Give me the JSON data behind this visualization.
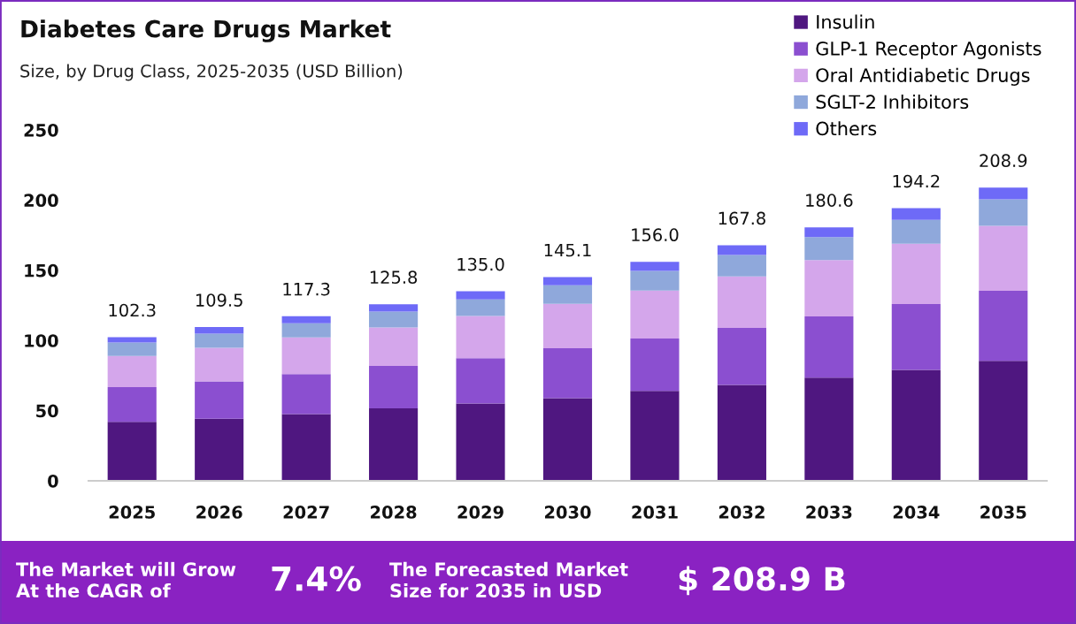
{
  "chart_data": {
    "type": "bar",
    "title": "Diabetes Care Drugs Market",
    "subtitle": "Size, by Drug Class, 2025-2035 (USD Billion)",
    "categories": [
      "2025",
      "2026",
      "2027",
      "2028",
      "2029",
      "2030",
      "2031",
      "2032",
      "2033",
      "2034",
      "2035"
    ],
    "stacked": true,
    "series": [
      {
        "name": "Insulin",
        "color": "#4f1780",
        "values": [
          42.0,
          44.2,
          47.6,
          51.6,
          55.1,
          58.9,
          64.0,
          68.4,
          73.5,
          79.1,
          85.5
        ]
      },
      {
        "name": "GLP-1 Receptor Agonists",
        "color": "#8b4fd0",
        "values": [
          24.8,
          26.6,
          28.4,
          30.3,
          32.3,
          35.5,
          37.4,
          40.5,
          43.7,
          46.8,
          49.9
        ]
      },
      {
        "name": "Oral Antidiabetic Drugs",
        "color": "#d4a6eb",
        "values": [
          22.2,
          24.0,
          26.2,
          27.3,
          30.1,
          31.7,
          34.2,
          36.8,
          40.0,
          43.0,
          46.2
        ]
      },
      {
        "name": "SGLT-2 Inhibitors",
        "color": "#8fa8db",
        "values": [
          9.5,
          10.1,
          10.0,
          11.4,
          11.8,
          13.3,
          14.0,
          15.2,
          16.5,
          17.1,
          19.0
        ]
      },
      {
        "name": "Others",
        "color": "#6e6af7",
        "values": [
          3.8,
          4.6,
          5.1,
          5.2,
          5.7,
          5.7,
          6.4,
          6.9,
          6.9,
          8.2,
          8.3
        ]
      }
    ],
    "ylim": [
      0,
      250
    ],
    "yticks": [
      0,
      50,
      100,
      150,
      200,
      250
    ],
    "totals": [
      "102.3",
      "109.5",
      "117.3",
      "125.8",
      "135.0",
      "145.1",
      "156.0",
      "167.8",
      "180.6",
      "194.2",
      "208.9"
    ],
    "legend": "top right",
    "annotations": [
      "The Market will Grow\nAt the CAGR of",
      "7.4%",
      "The Forecasted Market\nSize for 2035 in USD",
      "$ 208.9 B"
    ]
  }
}
